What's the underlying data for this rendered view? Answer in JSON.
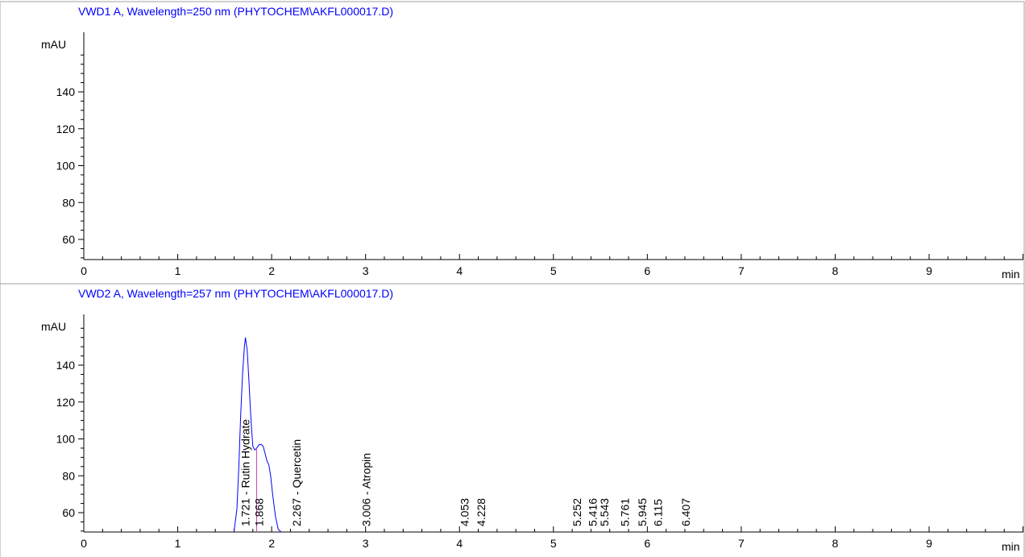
{
  "chart_data": [
    {
      "type": "line",
      "title": "VWD1 A, Wavelength=250 nm (PHYTOCHEM\\AKFL000017.D)",
      "ylabel": "mAU",
      "xlabel": "min",
      "xlim": [
        0,
        10
      ],
      "ylim": [
        50,
        160
      ],
      "x_ticks": [
        0,
        1,
        2,
        3,
        4,
        5,
        6,
        7,
        8,
        9
      ],
      "y_ticks": [
        60,
        80,
        100,
        120,
        140
      ],
      "series": [
        {
          "x": [],
          "y": []
        }
      ],
      "peaks": []
    },
    {
      "type": "line",
      "title": "VWD2 A, Wavelength=257 nm (PHYTOCHEM\\AKFL000017.D)",
      "ylabel": "mAU",
      "xlabel": "min",
      "xlim": [
        0,
        10
      ],
      "ylim": [
        50,
        160
      ],
      "x_ticks": [
        0,
        1,
        2,
        3,
        4,
        5,
        6,
        7,
        8,
        9
      ],
      "y_ticks": [
        60,
        80,
        100,
        120,
        140
      ],
      "series": [
        {
          "x": [
            1.6,
            1.63,
            1.65,
            1.67,
            1.69,
            1.71,
            1.721,
            1.74,
            1.76,
            1.78,
            1.8,
            1.82,
            1.84,
            1.868,
            1.89,
            1.91,
            1.93,
            1.95,
            1.97,
            1.99,
            2.01,
            2.04,
            2.07,
            2.1
          ],
          "y": [
            50,
            62,
            84,
            112,
            135,
            150,
            155,
            148,
            130,
            110,
            96,
            94,
            95,
            97,
            97,
            96,
            92,
            88,
            86,
            80,
            70,
            58,
            51,
            48
          ]
        }
      ],
      "peaks": [
        {
          "rt": 1.721,
          "label": "1.721 - Rutin Hydrate"
        },
        {
          "rt": 1.868,
          "label": "1.868"
        },
        {
          "rt": 2.267,
          "label": "2.267 - Quercetin"
        },
        {
          "rt": 3.006,
          "label": "3.006 - Atropin"
        },
        {
          "rt": 4.053,
          "label": "4.053"
        },
        {
          "rt": 4.228,
          "label": "4.228"
        },
        {
          "rt": 5.252,
          "label": "5.252"
        },
        {
          "rt": 5.416,
          "label": "5.416"
        },
        {
          "rt": 5.543,
          "label": "5.543"
        },
        {
          "rt": 5.761,
          "label": "5.761"
        },
        {
          "rt": 5.945,
          "label": "5.945"
        },
        {
          "rt": 6.115,
          "label": "6.115"
        },
        {
          "rt": 6.407,
          "label": "6.407"
        }
      ],
      "marker_rt": 1.84
    }
  ],
  "colors": {
    "title": "#0000ff",
    "trace": "#0000ff",
    "marker": "#cc44aa",
    "axis": "#000000",
    "frame": "#a0a0a0"
  }
}
